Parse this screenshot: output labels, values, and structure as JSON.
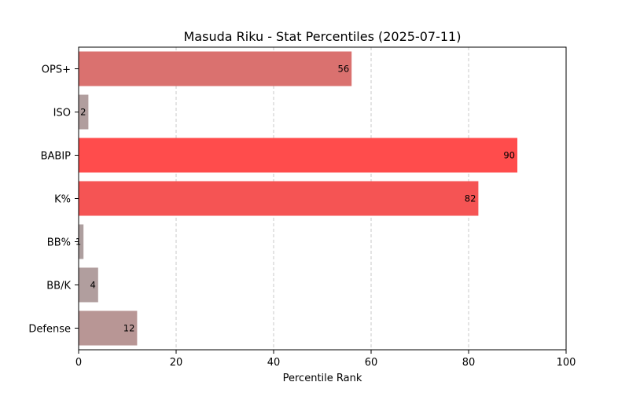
{
  "chart_data": {
    "type": "bar",
    "orientation": "horizontal",
    "title": "Masuda Riku - Stat Percentiles (2025-07-11)",
    "xlabel": "Percentile Rank",
    "ylabel": "",
    "xlim": [
      0,
      100
    ],
    "xticks": [
      0,
      20,
      40,
      60,
      80,
      100
    ],
    "grid": "x-dashed",
    "categories": [
      "OPS+",
      "ISO",
      "BABIP",
      "K%",
      "BB%",
      "BB/K",
      "Defense"
    ],
    "values": [
      56,
      2,
      90,
      82,
      1,
      4,
      12
    ],
    "value_labels": [
      "56",
      "2",
      "90",
      "82",
      "1",
      "4",
      "12"
    ],
    "colors": [
      "#da716f",
      "#b19e9e",
      "#ff4c4c",
      "#f55454",
      "#ae9f9f",
      "#b19e9e",
      "#b89695"
    ]
  }
}
